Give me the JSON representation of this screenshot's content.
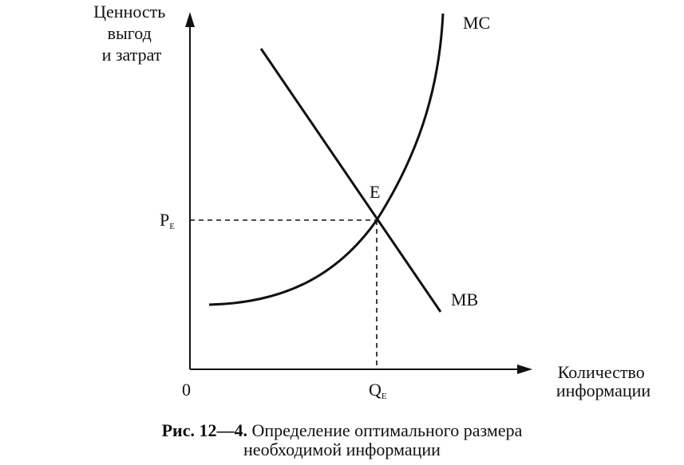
{
  "diagram": {
    "y_axis_label_lines": [
      "Ценность",
      "выгод",
      "и затрат"
    ],
    "x_axis_label_lines": [
      "Количество",
      "информации"
    ],
    "origin_label": "0",
    "curves": {
      "marginal_cost": {
        "label": "MC"
      },
      "marginal_benefit": {
        "label": "MB"
      }
    },
    "equilibrium": {
      "label": "E",
      "price_label": "P",
      "price_subscript": "E",
      "quantity_label": "Q",
      "quantity_subscript": "E"
    }
  },
  "caption": {
    "prefix": "Рис. 12—4.",
    "line1": "Определение оптимального размера",
    "line2": "необходимой информации"
  }
}
